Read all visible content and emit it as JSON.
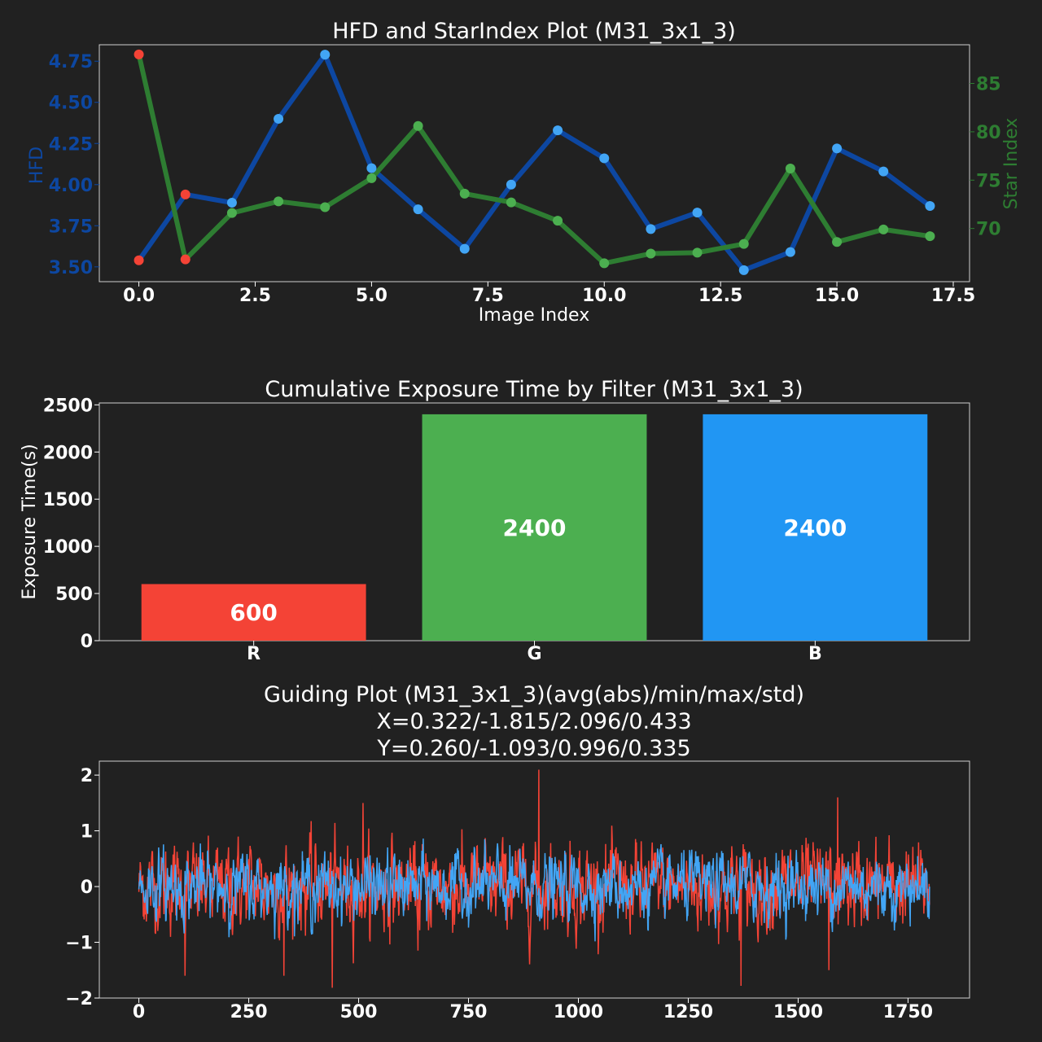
{
  "colors": {
    "background": "#212121",
    "text": "#ffffff",
    "hfd_line": "#0d47a1",
    "hfd_marker": "#42a5f5",
    "star_line": "#2e7d32",
    "star_marker": "#4caf50",
    "highlight_marker": "#f44336",
    "bar_r": "#f44336",
    "bar_g": "#4caf50",
    "bar_b": "#2196f3",
    "guide_x": "#f44336",
    "guide_y": "#42a5f5"
  },
  "chart_data": [
    {
      "type": "line",
      "title": "HFD and StarIndex Plot (M31_3x1_3)",
      "xlabel": "Image Index",
      "ylabel": "HFD",
      "y2label": "Star Index",
      "xlim": [
        -0.85,
        17.85
      ],
      "ylim": [
        3.41,
        4.85
      ],
      "y2lim": [
        64.5,
        89.0
      ],
      "xticks": [
        "0.0",
        "2.5",
        "5.0",
        "7.5",
        "10.0",
        "12.5",
        "15.0",
        "17.5"
      ],
      "yticks": [
        "3.50",
        "3.75",
        "4.00",
        "4.25",
        "4.50",
        "4.75"
      ],
      "y2ticks": [
        "70",
        "75",
        "80",
        "85"
      ],
      "x": [
        0,
        1,
        2,
        3,
        4,
        5,
        6,
        7,
        8,
        9,
        10,
        11,
        12,
        13,
        14,
        15,
        16,
        17
      ],
      "series": [
        {
          "name": "HFD",
          "axis": "left",
          "values": [
            3.54,
            3.94,
            3.89,
            4.4,
            4.79,
            4.1,
            3.85,
            3.61,
            4.0,
            4.33,
            4.16,
            3.73,
            3.83,
            3.48,
            3.59,
            4.22,
            4.08,
            3.87
          ],
          "highlight": [
            0,
            1
          ]
        },
        {
          "name": "Star Index",
          "axis": "right",
          "values": [
            88.0,
            66.8,
            71.6,
            72.8,
            72.2,
            75.2,
            80.6,
            73.6,
            72.7,
            70.8,
            66.4,
            67.4,
            67.5,
            68.4,
            76.2,
            68.6,
            69.9,
            69.2
          ],
          "highlight": [
            0,
            1
          ]
        }
      ]
    },
    {
      "type": "bar",
      "title": "Cumulative Exposure Time by Filter (M31_3x1_3)",
      "xlabel": "",
      "ylabel": "Exposure Time(s)",
      "ylim": [
        0,
        2520
      ],
      "yticks": [
        "0",
        "500",
        "1000",
        "1500",
        "2000",
        "2500"
      ],
      "categories": [
        "R",
        "G",
        "B"
      ],
      "values": [
        600,
        2400,
        2400
      ],
      "value_labels": [
        "600",
        "2400",
        "2400"
      ]
    },
    {
      "type": "line",
      "title": "Guiding Plot (M31_3x1_3)(avg(abs)/min/max/std)",
      "subtitle_x": "X=0.322/-1.815/2.096/0.433",
      "subtitle_y": "Y=0.260/-1.093/0.996/0.335",
      "xlabel": "",
      "ylabel": "",
      "xlim": [
        -90,
        1890
      ],
      "ylim": [
        -2.0,
        2.25
      ],
      "xticks": [
        "0",
        "250",
        "500",
        "750",
        "1000",
        "1250",
        "1500",
        "1750"
      ],
      "yticks": [
        "−2",
        "−1",
        "0",
        "1",
        "2"
      ],
      "n_points": 1800,
      "x_stats": {
        "avg_abs": 0.322,
        "min": -1.815,
        "max": 2.096,
        "std": 0.433
      },
      "y_stats": {
        "avg_abs": 0.26,
        "min": -1.093,
        "max": 0.996,
        "std": 0.335
      },
      "x_spikes": [
        [
          910,
          2.096
        ],
        [
          440,
          -1.815
        ],
        [
          105,
          -1.6
        ],
        [
          330,
          -1.6
        ],
        [
          1370,
          -1.78
        ],
        [
          1590,
          1.6
        ],
        [
          635,
          1.45
        ],
        [
          635,
          -1.15
        ],
        [
          510,
          1.5
        ],
        [
          1570,
          -1.5
        ]
      ]
    }
  ]
}
